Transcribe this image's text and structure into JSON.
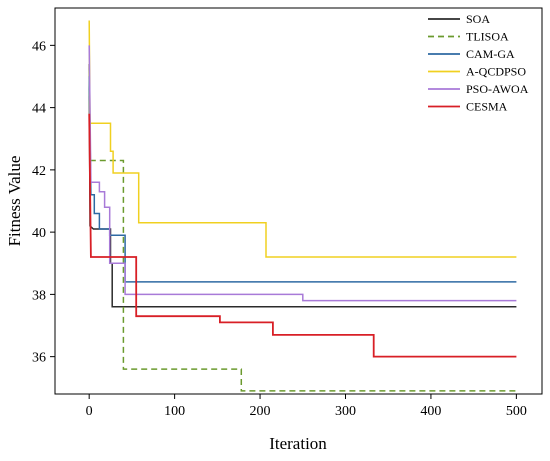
{
  "chart_data": {
    "type": "line",
    "title": "",
    "xlabel": "Iteration",
    "ylabel": "Fitness Value",
    "xlim": [
      -40,
      530
    ],
    "ylim": [
      34.8,
      47.2
    ],
    "xticks": [
      0,
      100,
      200,
      300,
      400,
      500
    ],
    "yticks": [
      36,
      38,
      40,
      42,
      44,
      46
    ],
    "grid": false,
    "legend_position": "top-right",
    "series": [
      {
        "name": "SOA",
        "color": "#2b2b2b",
        "dash": "",
        "points": [
          [
            0,
            45.4
          ],
          [
            1,
            40.2
          ],
          [
            5,
            40.1
          ],
          [
            25,
            40.1
          ],
          [
            25,
            39.0
          ],
          [
            27,
            39.0
          ],
          [
            27,
            37.6
          ],
          [
            500,
            37.6
          ]
        ]
      },
      {
        "name": "TLISOA",
        "color": "#6b9a2e",
        "dash": "6,4",
        "points": [
          [
            0,
            45.2
          ],
          [
            1,
            42.3
          ],
          [
            40,
            42.3
          ],
          [
            40,
            35.6
          ],
          [
            178,
            35.6
          ],
          [
            178,
            34.9
          ],
          [
            500,
            34.9
          ]
        ]
      },
      {
        "name": "CAM-GA",
        "color": "#2e6aa3",
        "dash": "",
        "points": [
          [
            0,
            45.0
          ],
          [
            2,
            41.2
          ],
          [
            6,
            41.2
          ],
          [
            6,
            40.6
          ],
          [
            12,
            40.6
          ],
          [
            12,
            40.1
          ],
          [
            24,
            40.1
          ],
          [
            24,
            39.9
          ],
          [
            42,
            39.9
          ],
          [
            42,
            38.4
          ],
          [
            500,
            38.4
          ]
        ]
      },
      {
        "name": "A-QCDPSO",
        "color": "#f0d020",
        "dash": "",
        "points": [
          [
            0,
            46.8
          ],
          [
            1,
            43.5
          ],
          [
            25,
            43.5
          ],
          [
            25,
            42.6
          ],
          [
            28,
            42.6
          ],
          [
            28,
            41.9
          ],
          [
            58,
            41.9
          ],
          [
            58,
            40.3
          ],
          [
            207,
            40.3
          ],
          [
            207,
            39.2
          ],
          [
            500,
            39.2
          ]
        ]
      },
      {
        "name": "PSO-AWOA",
        "color": "#a87ad8",
        "dash": "",
        "points": [
          [
            0,
            46.0
          ],
          [
            2,
            41.6
          ],
          [
            12,
            41.6
          ],
          [
            12,
            41.3
          ],
          [
            18,
            41.3
          ],
          [
            18,
            40.8
          ],
          [
            24,
            40.8
          ],
          [
            24,
            39.0
          ],
          [
            42,
            39.0
          ],
          [
            42,
            38.0
          ],
          [
            250,
            38.0
          ],
          [
            250,
            37.8
          ],
          [
            500,
            37.8
          ]
        ]
      },
      {
        "name": "CESMA",
        "color": "#d81f26",
        "dash": "",
        "points": [
          [
            0,
            43.8
          ],
          [
            2,
            39.2
          ],
          [
            55,
            39.2
          ],
          [
            55,
            37.3
          ],
          [
            153,
            37.3
          ],
          [
            153,
            37.1
          ],
          [
            215,
            37.1
          ],
          [
            215,
            36.7
          ],
          [
            333,
            36.7
          ],
          [
            333,
            36.0
          ],
          [
            500,
            36.0
          ]
        ]
      }
    ]
  }
}
